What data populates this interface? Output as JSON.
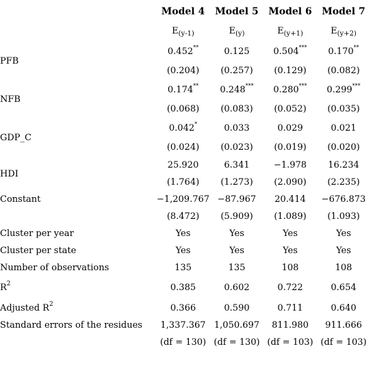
{
  "models": [
    {
      "name": "Model 4",
      "dep_main": "E",
      "dep_sub": "(y-1)"
    },
    {
      "name": "Model 5",
      "dep_main": "E",
      "dep_sub": "(y)"
    },
    {
      "name": "Model 6",
      "dep_main": "E",
      "dep_sub": "(y+1)"
    },
    {
      "name": "Model 7",
      "dep_main": "E",
      "dep_sub": "(y+2)"
    }
  ],
  "variables": [
    {
      "label": "PFB",
      "coef": [
        {
          "value": "0.452",
          "stars": "**"
        },
        {
          "value": "0.125",
          "stars": ""
        },
        {
          "value": "0.504",
          "stars": "***"
        },
        {
          "value": "0.170",
          "stars": "**"
        }
      ],
      "se": [
        "(0.204)",
        "(0.257)",
        "(0.129)",
        "(0.082)"
      ]
    },
    {
      "label": "NFB",
      "coef": [
        {
          "value": "0.174",
          "stars": "**"
        },
        {
          "value": "0.248",
          "stars": "***"
        },
        {
          "value": "0.280",
          "stars": "***"
        },
        {
          "value": "0.299",
          "stars": "***"
        }
      ],
      "se": [
        "(0.068)",
        "(0.083)",
        "(0.052)",
        "(0.035)"
      ]
    },
    {
      "label": "GDP_C",
      "coef": [
        {
          "value": "0.042",
          "stars": "*"
        },
        {
          "value": "0.033",
          "stars": ""
        },
        {
          "value": "0.029",
          "stars": ""
        },
        {
          "value": "0.021",
          "stars": ""
        }
      ],
      "se": [
        "(0.024)",
        "(0.023)",
        "(0.019)",
        "(0.020)"
      ]
    },
    {
      "label": "HDI",
      "coef": [
        {
          "value": "25.920",
          "stars": ""
        },
        {
          "value": "6.341",
          "stars": ""
        },
        {
          "value": "−1.978",
          "stars": ""
        },
        {
          "value": "16.234",
          "stars": ""
        }
      ],
      "se": [
        "(1.764)",
        "(1.273)",
        "(2.090)",
        "(2.235)"
      ]
    },
    {
      "label": "Constant",
      "coef": [
        {
          "value": "−1,209.767",
          "stars": ""
        },
        {
          "value": "−87.967",
          "stars": ""
        },
        {
          "value": "20.414",
          "stars": ""
        },
        {
          "value": "−676.873",
          "stars": ""
        }
      ],
      "se": [
        "(8.472)",
        "(5.909)",
        "(1.089)",
        "(1.093)"
      ]
    }
  ],
  "stats": {
    "cluster_year": {
      "label": "Cluster per year",
      "values": [
        "Yes",
        "Yes",
        "Yes",
        "Yes"
      ]
    },
    "cluster_state": {
      "label": "Cluster per state",
      "values": [
        "Yes",
        "Yes",
        "Yes",
        "Yes"
      ]
    },
    "n_obs": {
      "label": "Number of observations",
      "values": [
        "135",
        "135",
        "108",
        "108"
      ]
    },
    "r2": {
      "label_main": "R",
      "label_sup": "2",
      "values": [
        "0.385",
        "0.602",
        "0.722",
        "0.654"
      ]
    },
    "adj_r2": {
      "label_main": "Adjusted R",
      "label_sup": "2",
      "values": [
        "0.366",
        "0.590",
        "0.711",
        "0.640"
      ]
    },
    "ser": {
      "label": "Standard errors of the residues",
      "values": [
        "1,337.367",
        "1,050.697",
        "811.980",
        "911.666"
      ],
      "df": [
        "(df = 130)",
        "(df = 130)",
        "(df = 103)",
        "(df = 103)"
      ]
    }
  }
}
